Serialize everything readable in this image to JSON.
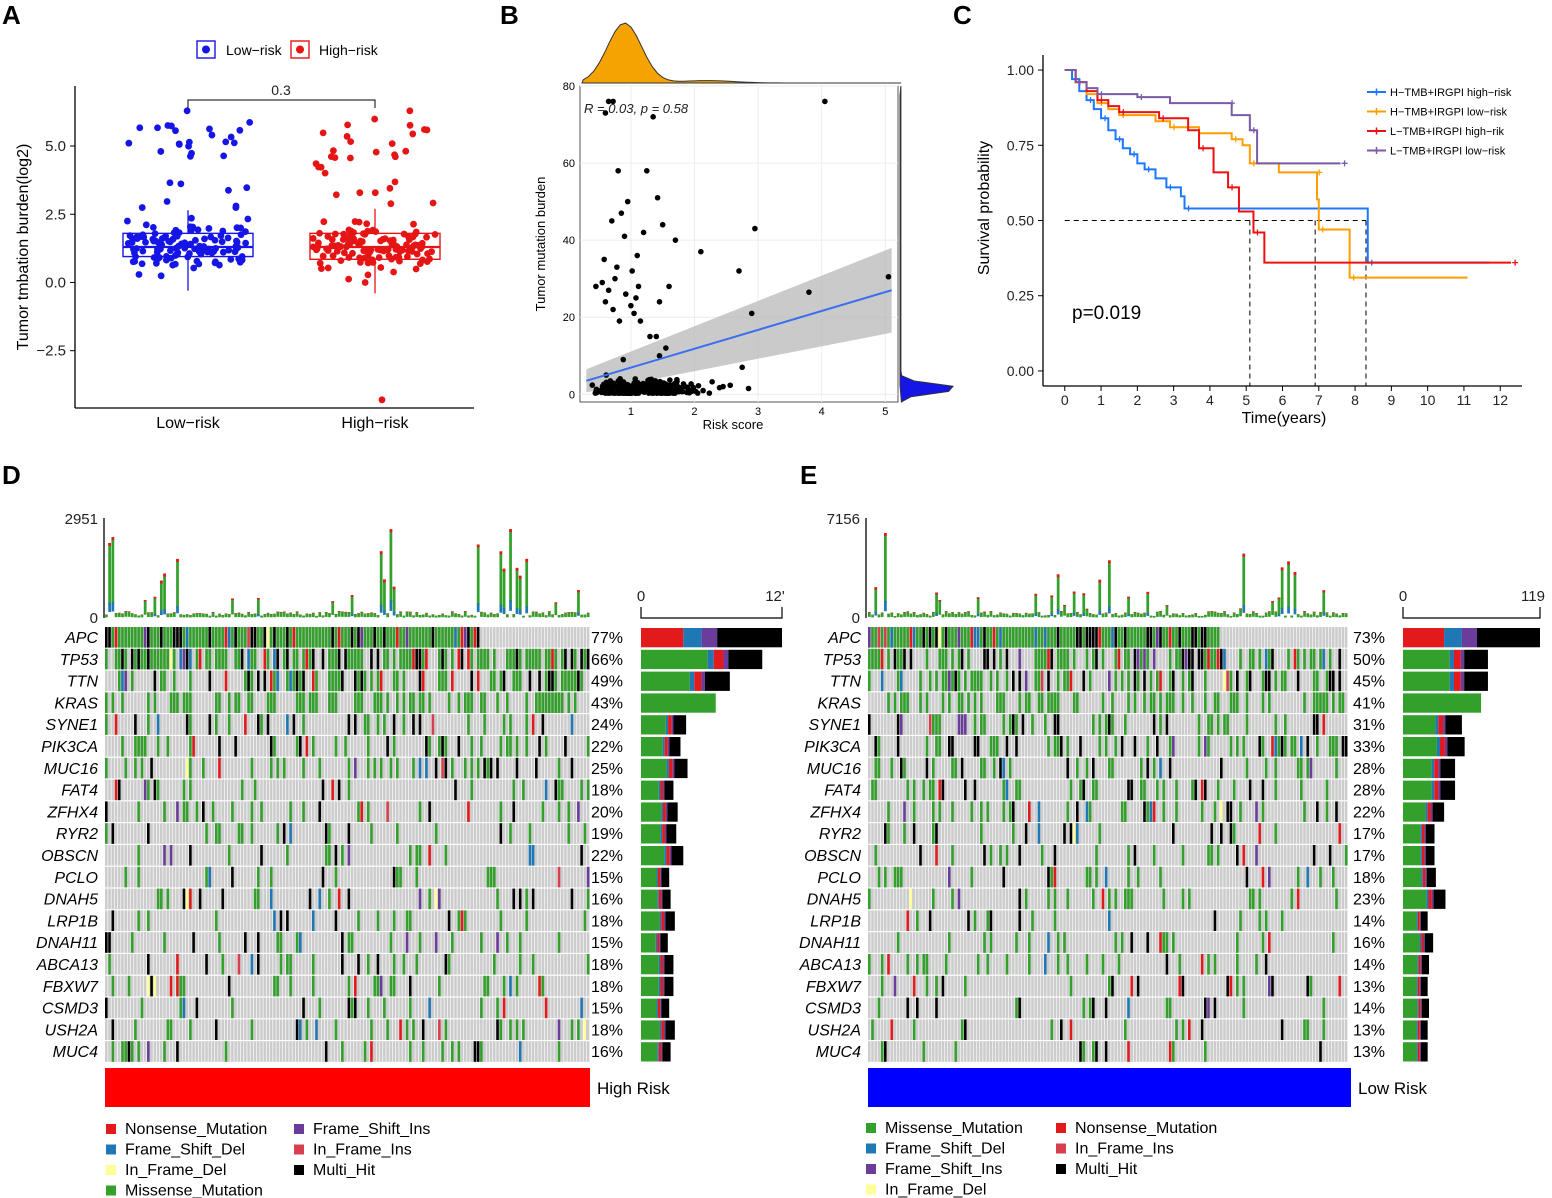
{
  "panels": {
    "a": "A",
    "b": "B",
    "c": "C",
    "d": "D",
    "e": "E"
  },
  "colors": {
    "low_risk": "#1515e6",
    "high_risk": "#e61515",
    "density": "#f5a300",
    "fit_line": "#3b6ff0",
    "ci_band": "#b8b8b8",
    "nonsense": "#e31a1c",
    "frame_shift_del": "#1f78b4",
    "in_frame_del": "#ffff99",
    "missense": "#33a02c",
    "frame_shift_ins": "#6a3d9a",
    "in_frame_ins": "#d6404e",
    "multi_hit": "#000000",
    "oncoprint_bg": "#cccccc",
    "km_h_high": "#1e78ff",
    "km_h_low": "#ff9e00",
    "km_l_high": "#ee1010",
    "km_l_low": "#7b5aa6"
  },
  "chart_data": [
    {
      "id": "A",
      "type": "box",
      "legend": [
        "Low−risk",
        "High−risk"
      ],
      "ylabel": "Tumor tmbation burden(log2)",
      "categories": [
        "Low−risk",
        "High−risk"
      ],
      "ylim": [
        -4.6,
        7.2
      ],
      "yticks": [
        -2.5,
        0.0,
        2.5,
        5.0
      ],
      "ytick_labels": [
        "−2.5",
        "0.0",
        "2.5",
        "5.0"
      ],
      "boxes": [
        {
          "group": "Low−risk",
          "whisker_low": -0.3,
          "q1": 0.95,
          "median": 1.3,
          "q3": 1.8,
          "whisker_high": 2.65
        },
        {
          "group": "High−risk",
          "whisker_low": -0.4,
          "q1": 0.85,
          "median": 1.3,
          "q3": 1.8,
          "whisker_high": 2.7
        }
      ],
      "comparison_p": "0.3",
      "outliers": [
        {
          "group": "High−risk",
          "y": -4.3
        }
      ]
    },
    {
      "id": "B",
      "type": "scatter",
      "xlabel": "Risk score",
      "ylabel": "Tumor mutation burden",
      "xlim": [
        0.2,
        5.2
      ],
      "ylim": [
        -2,
        80
      ],
      "xticks": [
        1,
        2,
        3,
        4,
        5
      ],
      "yticks": [
        0,
        20,
        40,
        60,
        80
      ],
      "annotation": "R = 0.03, p = 0.58",
      "fit": {
        "x": [
          0.3,
          5.1
        ],
        "y": [
          3.5,
          27
        ],
        "ci_low": [
          0.5,
          16
        ],
        "ci_high": [
          6.5,
          38
        ]
      },
      "highlighted_points": [
        [
          0.45,
          28
        ],
        [
          0.55,
          29
        ],
        [
          0.58,
          35
        ],
        [
          0.6,
          24
        ],
        [
          0.65,
          27
        ],
        [
          0.7,
          45
        ],
        [
          0.72,
          22
        ],
        [
          0.75,
          30
        ],
        [
          0.78,
          33
        ],
        [
          0.8,
          58
        ],
        [
          0.82,
          19
        ],
        [
          0.85,
          47
        ],
        [
          0.88,
          9
        ],
        [
          0.9,
          41
        ],
        [
          0.92,
          26
        ],
        [
          0.95,
          50
        ],
        [
          1.0,
          23
        ],
        [
          1.02,
          32
        ],
        [
          1.05,
          21
        ],
        [
          1.08,
          25
        ],
        [
          1.1,
          36
        ],
        [
          1.12,
          28
        ],
        [
          1.15,
          19
        ],
        [
          1.2,
          42
        ],
        [
          1.25,
          58
        ],
        [
          1.3,
          15
        ],
        [
          1.35,
          72
        ],
        [
          1.4,
          15
        ],
        [
          1.42,
          51
        ],
        [
          1.45,
          24
        ],
        [
          1.5,
          44
        ],
        [
          1.55,
          12
        ],
        [
          1.6,
          28
        ],
        [
          1.7,
          40
        ],
        [
          2.1,
          37
        ],
        [
          2.7,
          32
        ],
        [
          2.75,
          7
        ],
        [
          2.9,
          21
        ],
        [
          2.95,
          43
        ],
        [
          3.8,
          26.5
        ],
        [
          4.05,
          76
        ],
        [
          5.05,
          30.5
        ],
        [
          0.65,
          76
        ],
        [
          0.72,
          76
        ],
        [
          0.6,
          73
        ],
        [
          1.45,
          10
        ],
        [
          2.45,
          2
        ],
        [
          2.85,
          1.5
        ]
      ]
    },
    {
      "id": "C",
      "type": "line",
      "xlabel": "Time(years)",
      "ylabel": "Survival probability",
      "xlim": [
        -0.6,
        12.6
      ],
      "ylim": [
        -0.05,
        1.05
      ],
      "xticks": [
        0,
        1,
        2,
        3,
        4,
        5,
        6,
        7,
        8,
        9,
        10,
        11,
        12
      ],
      "yticks": [
        0.0,
        0.25,
        0.5,
        0.75,
        1.0
      ],
      "ytick_labels": [
        "0.00",
        "0.25",
        "0.50",
        "0.75",
        "1.00"
      ],
      "pvalue": "p=0.019",
      "median_lines": [
        5.1,
        6.9,
        8.3
      ],
      "series": [
        {
          "name": "H−TMB+IRGPI high−risk",
          "color": "#1e78ff",
          "steps": [
            [
              0,
              1.0
            ],
            [
              0.2,
              0.97
            ],
            [
              0.4,
              0.93
            ],
            [
              0.6,
              0.9
            ],
            [
              0.8,
              0.87
            ],
            [
              1.0,
              0.84
            ],
            [
              1.2,
              0.8
            ],
            [
              1.4,
              0.77
            ],
            [
              1.6,
              0.74
            ],
            [
              1.8,
              0.72
            ],
            [
              2.0,
              0.69
            ],
            [
              2.2,
              0.67
            ],
            [
              2.5,
              0.64
            ],
            [
              2.8,
              0.61
            ],
            [
              3.2,
              0.58
            ],
            [
              3.3,
              0.54
            ],
            [
              8.3,
              0.54
            ],
            [
              8.35,
              0.36
            ],
            [
              11.7,
              0.36
            ]
          ]
        },
        {
          "name": "H−TMB+IRGPI low−risk",
          "color": "#ff9e00",
          "steps": [
            [
              0,
              1.0
            ],
            [
              0.3,
              0.96
            ],
            [
              0.6,
              0.92
            ],
            [
              0.9,
              0.89
            ],
            [
              1.2,
              0.87
            ],
            [
              1.5,
              0.85
            ],
            [
              2.5,
              0.83
            ],
            [
              2.9,
              0.81
            ],
            [
              3.7,
              0.79
            ],
            [
              4.6,
              0.77
            ],
            [
              4.9,
              0.75
            ],
            [
              5.1,
              0.69
            ],
            [
              5.9,
              0.66
            ],
            [
              6.9,
              0.66
            ],
            [
              6.95,
              0.57
            ],
            [
              7.0,
              0.47
            ],
            [
              7.8,
              0.47
            ],
            [
              7.85,
              0.31
            ],
            [
              11.1,
              0.31
            ]
          ]
        },
        {
          "name": "L−TMB+IRGPI high−rik",
          "color": "#ee1010",
          "steps": [
            [
              0,
              1.0
            ],
            [
              0.3,
              0.96
            ],
            [
              0.6,
              0.93
            ],
            [
              0.9,
              0.9
            ],
            [
              1.2,
              0.88
            ],
            [
              1.5,
              0.86
            ],
            [
              2.2,
              0.86
            ],
            [
              2.6,
              0.84
            ],
            [
              3.4,
              0.8
            ],
            [
              3.7,
              0.74
            ],
            [
              4.1,
              0.66
            ],
            [
              4.5,
              0.61
            ],
            [
              4.8,
              0.53
            ],
            [
              5.2,
              0.46
            ],
            [
              5.5,
              0.36
            ],
            [
              12.3,
              0.36
            ]
          ]
        },
        {
          "name": "L−TMB+IRGPI low−risk",
          "color": "#7b5aa6",
          "steps": [
            [
              0,
              1.0
            ],
            [
              0.3,
              0.96
            ],
            [
              0.6,
              0.94
            ],
            [
              0.9,
              0.92
            ],
            [
              1.5,
              0.92
            ],
            [
              2.0,
              0.91
            ],
            [
              2.9,
              0.89
            ],
            [
              4.5,
              0.89
            ],
            [
              4.6,
              0.85
            ],
            [
              5.1,
              0.8
            ],
            [
              5.3,
              0.69
            ],
            [
              7.6,
              0.69
            ]
          ]
        }
      ]
    },
    {
      "id": "D",
      "type": "heatmap",
      "tmb_axis": [
        "0",
        "2951"
      ],
      "freq_axis": [
        "0",
        "12'"
      ],
      "genes": [
        "APC",
        "TP53",
        "TTN",
        "KRAS",
        "SYNE1",
        "PIK3CA",
        "MUC16",
        "FAT4",
        "ZFHX4",
        "RYR2",
        "OBSCN",
        "PCLO",
        "DNAH5",
        "LRP1B",
        "DNAH11",
        "ABCA13",
        "FBXW7",
        "CSMD3",
        "USH2A",
        "MUC4"
      ],
      "pcts": [
        "77%",
        "66%",
        "49%",
        "43%",
        "24%",
        "22%",
        "25%",
        "18%",
        "20%",
        "19%",
        "22%",
        "15%",
        "16%",
        "18%",
        "15%",
        "18%",
        "18%",
        "15%",
        "18%",
        "16%"
      ],
      "freq": [
        0.77,
        0.66,
        0.49,
        0.43,
        0.24,
        0.22,
        0.25,
        0.18,
        0.2,
        0.19,
        0.22,
        0.15,
        0.16,
        0.18,
        0.15,
        0.18,
        0.18,
        0.15,
        0.18,
        0.16
      ],
      "bar_fraction": [
        1.0,
        0.86,
        0.63,
        0.53,
        0.32,
        0.28,
        0.33,
        0.23,
        0.26,
        0.25,
        0.3,
        0.2,
        0.21,
        0.24,
        0.19,
        0.23,
        0.23,
        0.2,
        0.24,
        0.21
      ],
      "group_label": "High Risk",
      "legend": [
        "Nonsense_Mutation",
        "Frame_Shift_Del",
        "In_Frame_Del",
        "Missense_Mutation",
        "Frame_Shift_Ins",
        "In_Frame_Ins",
        "Multi_Hit"
      ]
    },
    {
      "id": "E",
      "type": "heatmap",
      "tmb_axis": [
        "0",
        "7156"
      ],
      "freq_axis": [
        "0",
        "119"
      ],
      "genes": [
        "APC",
        "TP53",
        "TTN",
        "KRAS",
        "SYNE1",
        "PIK3CA",
        "MUC16",
        "FAT4",
        "ZFHX4",
        "RYR2",
        "OBSCN",
        "PCLO",
        "DNAH5",
        "LRP1B",
        "DNAH11",
        "ABCA13",
        "FBXW7",
        "CSMD3",
        "USH2A",
        "MUC4"
      ],
      "pcts": [
        "73%",
        "50%",
        "45%",
        "41%",
        "31%",
        "33%",
        "28%",
        "28%",
        "22%",
        "17%",
        "17%",
        "18%",
        "23%",
        "14%",
        "16%",
        "14%",
        "13%",
        "14%",
        "13%",
        "13%"
      ],
      "freq": [
        0.73,
        0.5,
        0.45,
        0.41,
        0.31,
        0.33,
        0.28,
        0.28,
        0.22,
        0.17,
        0.17,
        0.18,
        0.23,
        0.14,
        0.16,
        0.14,
        0.13,
        0.14,
        0.13,
        0.13
      ],
      "bar_fraction": [
        1.0,
        0.62,
        0.62,
        0.57,
        0.43,
        0.45,
        0.38,
        0.38,
        0.3,
        0.23,
        0.23,
        0.24,
        0.31,
        0.18,
        0.22,
        0.19,
        0.18,
        0.19,
        0.18,
        0.18
      ],
      "group_label": "Low Risk",
      "legend": [
        "Missense_Mutation",
        "Frame_Shift_Del",
        "Frame_Shift_Ins",
        "In_Frame_Del",
        "Nonsense_Mutation",
        "In_Frame_Ins",
        "Multi_Hit"
      ]
    }
  ]
}
